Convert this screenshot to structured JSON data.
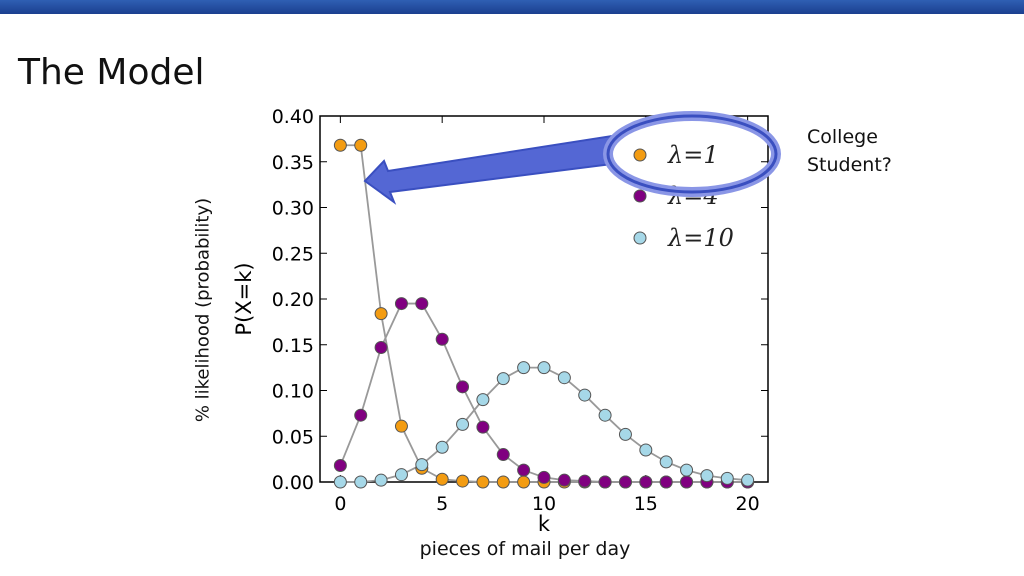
{
  "slide": {
    "title": "The Model",
    "side_note_line1": "College",
    "side_note_line2": "Student?",
    "outer_ylabel": "% likelihood  (probability)",
    "outer_xlabel": "pieces of mail per day"
  },
  "colors": {
    "top_bar": "#1f4a9e",
    "lambda1": "#f39c12",
    "lambda4": "#800080",
    "lambda10": "#a6d8e8",
    "callout": "#3a4fc0"
  },
  "chart_data": {
    "type": "scatter",
    "xlabel": "k",
    "ylabel": "P(X=k)",
    "xlim": [
      -1,
      21
    ],
    "ylim": [
      0,
      0.4
    ],
    "xticks": [
      "0",
      "5",
      "10",
      "15",
      "20"
    ],
    "yticks": [
      "0.00",
      "0.05",
      "0.10",
      "0.15",
      "0.20",
      "0.25",
      "0.30",
      "0.35",
      "0.40"
    ],
    "legend_position": "top-right",
    "series": [
      {
        "name": "λ=1",
        "color": "#f39c12",
        "x": [
          0,
          1,
          2,
          3,
          4,
          5,
          6,
          7,
          8,
          9,
          10,
          11,
          12,
          13,
          14,
          15,
          16,
          17,
          18,
          19,
          20
        ],
        "y": [
          0.368,
          0.368,
          0.184,
          0.061,
          0.015,
          0.003,
          0.001,
          0,
          0,
          0,
          0,
          0,
          0,
          0,
          0,
          0,
          0,
          0,
          0,
          0,
          0
        ]
      },
      {
        "name": "λ=4",
        "color": "#800080",
        "x": [
          0,
          1,
          2,
          3,
          4,
          5,
          6,
          7,
          8,
          9,
          10,
          11,
          12,
          13,
          14,
          15,
          16,
          17,
          18,
          19,
          20
        ],
        "y": [
          0.018,
          0.073,
          0.147,
          0.195,
          0.195,
          0.156,
          0.104,
          0.06,
          0.03,
          0.013,
          0.005,
          0.002,
          0.001,
          0,
          0,
          0,
          0,
          0,
          0,
          0,
          0
        ]
      },
      {
        "name": "λ=10",
        "color": "#a6d8e8",
        "x": [
          0,
          1,
          2,
          3,
          4,
          5,
          6,
          7,
          8,
          9,
          10,
          11,
          12,
          13,
          14,
          15,
          16,
          17,
          18,
          19,
          20
        ],
        "y": [
          0,
          0,
          0.002,
          0.008,
          0.019,
          0.038,
          0.063,
          0.09,
          0.113,
          0.125,
          0.125,
          0.114,
          0.095,
          0.073,
          0.052,
          0.035,
          0.022,
          0.013,
          0.007,
          0.004,
          0.002
        ]
      }
    ]
  }
}
